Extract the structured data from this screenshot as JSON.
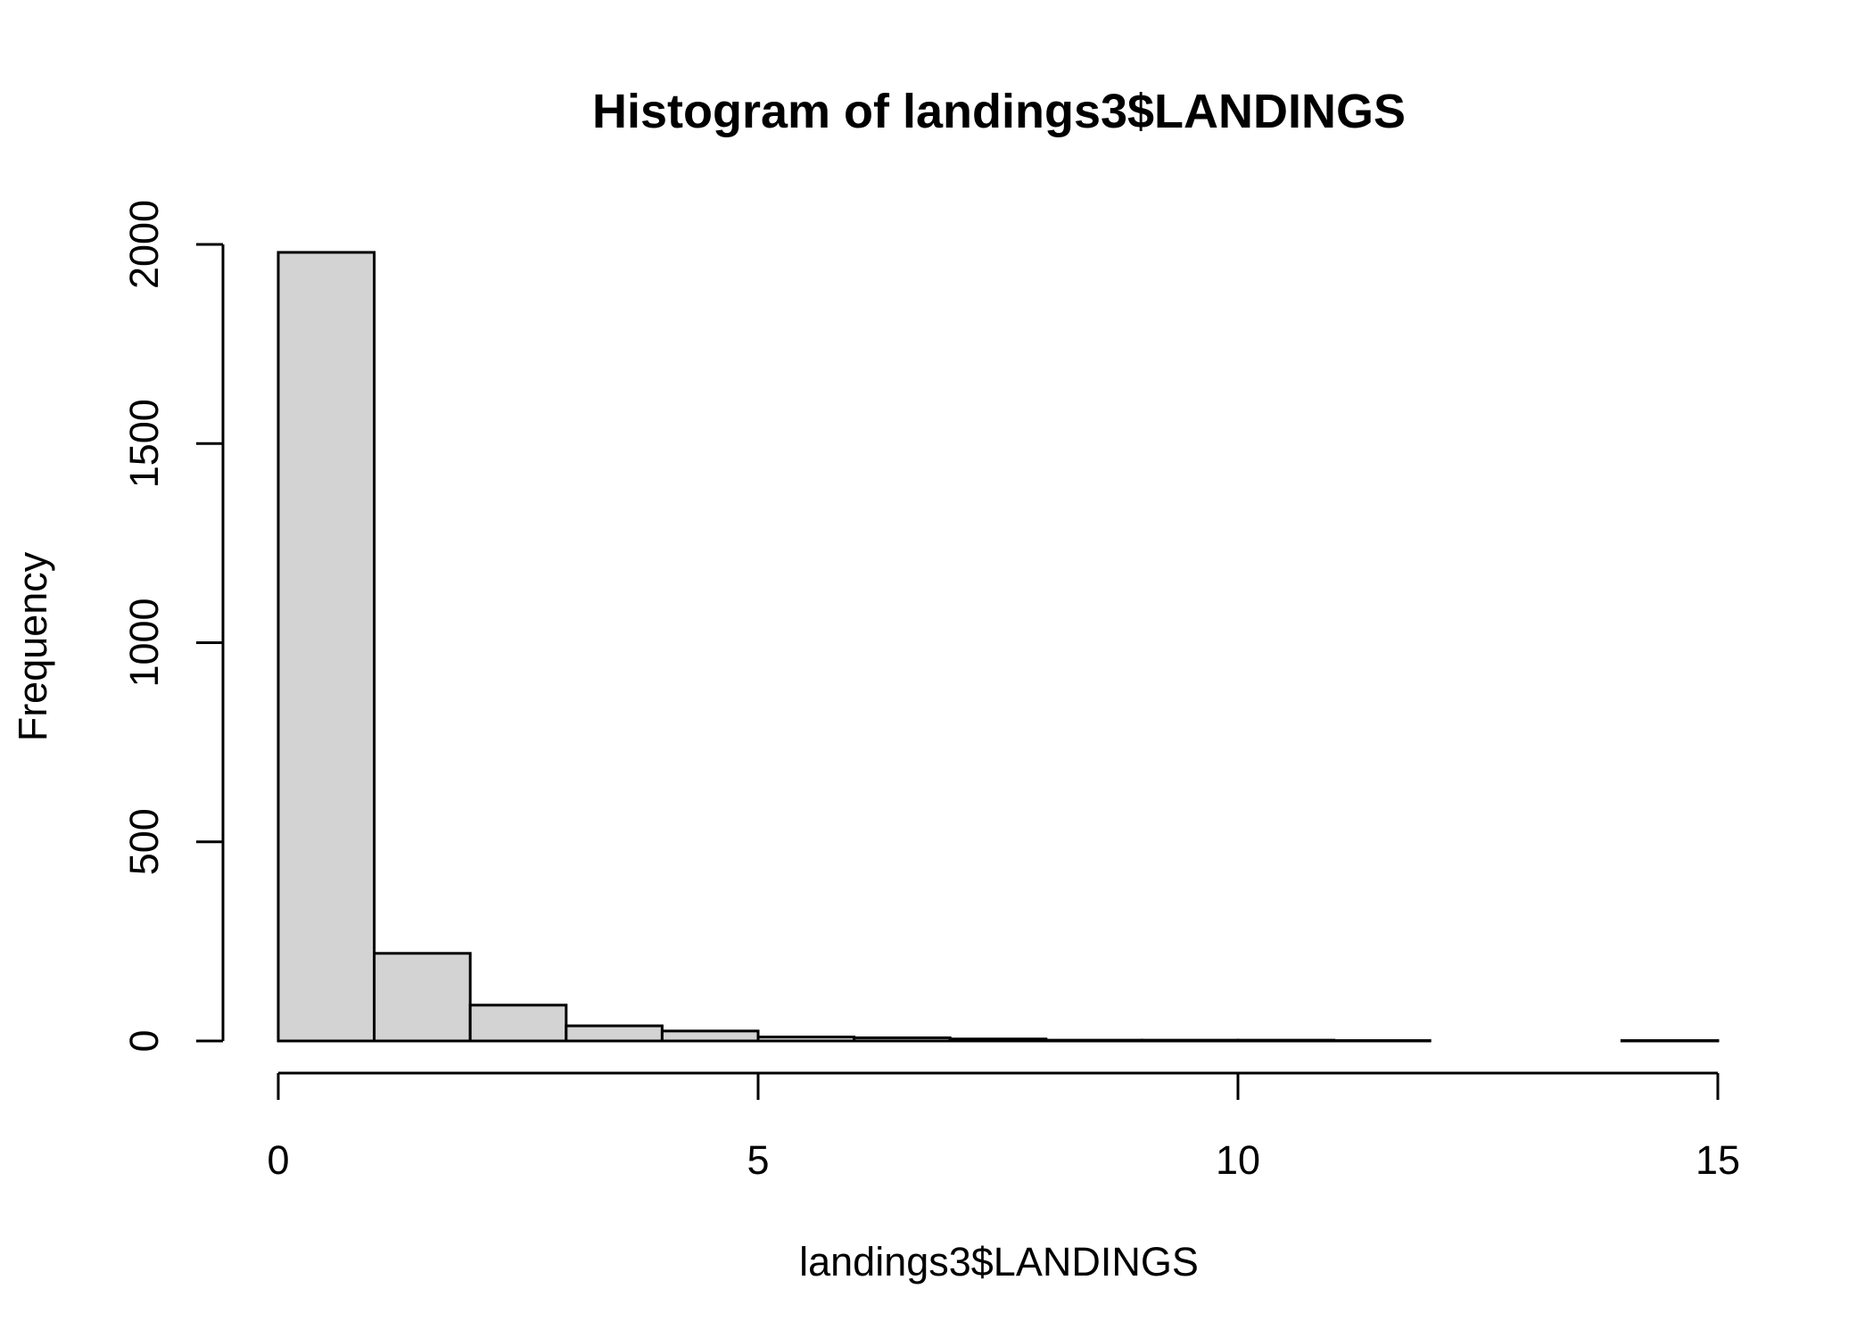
{
  "chart_data": {
    "type": "bar",
    "title": "Histogram of landings3$LANDINGS",
    "xlabel": "landings3$LANDINGS",
    "ylabel": "Frequency",
    "bins": [
      {
        "from": 0,
        "to": 1,
        "count": 1980
      },
      {
        "from": 1,
        "to": 2,
        "count": 220
      },
      {
        "from": 2,
        "to": 3,
        "count": 90
      },
      {
        "from": 3,
        "to": 4,
        "count": 38
      },
      {
        "from": 4,
        "to": 5,
        "count": 25
      },
      {
        "from": 5,
        "to": 6,
        "count": 10
      },
      {
        "from": 6,
        "to": 7,
        "count": 8
      },
      {
        "from": 7,
        "to": 8,
        "count": 5
      },
      {
        "from": 8,
        "to": 9,
        "count": 2
      },
      {
        "from": 9,
        "to": 10,
        "count": 2
      },
      {
        "from": 10,
        "to": 11,
        "count": 2
      },
      {
        "from": 11,
        "to": 12,
        "count": 1
      },
      {
        "from": 12,
        "to": 13,
        "count": 0
      },
      {
        "from": 13,
        "to": 14,
        "count": 0
      },
      {
        "from": 14,
        "to": 15,
        "count": 1
      }
    ],
    "xlim": [
      0,
      15
    ],
    "ylim": [
      0,
      2000
    ],
    "xticks": [
      0,
      5,
      10,
      15
    ],
    "yticks": [
      0,
      500,
      1000,
      1500,
      2000
    ],
    "xtick_labels": [
      "0",
      "5",
      "10",
      "15"
    ],
    "ytick_labels": [
      "0",
      "500",
      "1000",
      "1500",
      "2000"
    ],
    "bar_color": "#d3d3d3",
    "grid": false,
    "legend": "none"
  }
}
